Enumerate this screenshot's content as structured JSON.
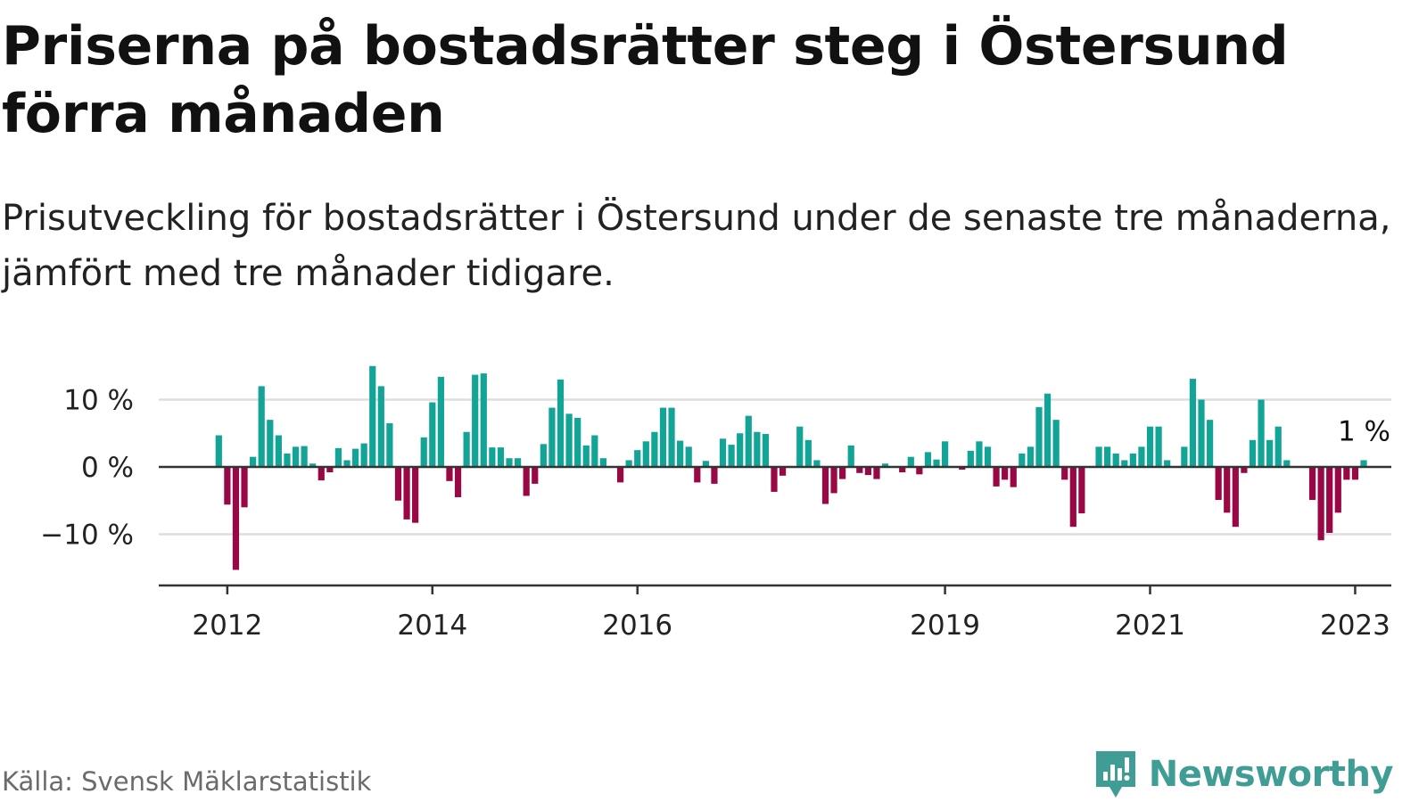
{
  "header": {
    "title": "Priserna på bostadsrätter steg i Östersund förra månaden",
    "subtitle": "Prisutveckling för bostadsrätter i Östersund under de senaste tre månaderna, jämfört med tre månader tidigare."
  },
  "footer": {
    "source": "Källa: Svensk Mäklarstatistik",
    "brand": "Newsworthy",
    "brand_icon": "newsworthy-logo-icon"
  },
  "colors": {
    "positive": "#11a497",
    "negative": "#990845",
    "grid": "#dddddd",
    "axis": "#333333"
  },
  "chart_data": {
    "type": "bar",
    "title": "",
    "xlabel": "",
    "ylabel": "",
    "ylim": [
      -17,
      15
    ],
    "y_ticks": [
      {
        "value": 10,
        "label": "10 %"
      },
      {
        "value": 0,
        "label": "0 %"
      },
      {
        "value": -10,
        "label": "−10 %"
      }
    ],
    "x_ticks": [
      {
        "year": 2012,
        "label": "2012"
      },
      {
        "year": 2014,
        "label": "2014"
      },
      {
        "year": 2016,
        "label": "2016"
      },
      {
        "year": 2019,
        "label": "2019"
      },
      {
        "year": 2021,
        "label": "2021"
      },
      {
        "year": 2023,
        "label": "2023"
      }
    ],
    "grid": true,
    "start": "2011-12",
    "frequency": "monthly",
    "end_label": "1 %",
    "values": [
      4.7,
      -5.6,
      -15.3,
      -6.0,
      1.5,
      12.0,
      7.0,
      4.7,
      2.0,
      3.0,
      3.1,
      0.5,
      -2.0,
      -0.8,
      2.8,
      1.0,
      2.7,
      3.5,
      15.0,
      12.0,
      6.5,
      -5.0,
      -7.8,
      -8.3,
      4.4,
      9.6,
      13.4,
      -2.1,
      -4.5,
      5.2,
      13.7,
      13.9,
      2.9,
      2.9,
      1.3,
      1.3,
      -4.3,
      -2.5,
      3.4,
      8.8,
      13.0,
      7.9,
      7.3,
      3.2,
      4.7,
      1.3,
      0.0,
      -2.3,
      1.0,
      2.5,
      3.8,
      5.2,
      8.8,
      8.8,
      3.9,
      3.0,
      -2.3,
      0.9,
      -2.5,
      4.2,
      3.3,
      5.0,
      7.6,
      5.2,
      4.9,
      -3.7,
      -1.3,
      0.0,
      6.0,
      4.0,
      1.0,
      -5.5,
      -3.9,
      -1.8,
      3.2,
      -0.9,
      -1.2,
      -1.8,
      0.5,
      0.0,
      -0.8,
      1.5,
      -1.1,
      2.2,
      1.1,
      3.8,
      0.0,
      -0.4,
      2.4,
      3.8,
      3.0,
      -2.9,
      -1.9,
      -3.0,
      2.0,
      3.0,
      8.9,
      10.9,
      7.0,
      -1.9,
      -8.9,
      -6.9,
      0.0,
      3.0,
      3.0,
      2.0,
      1.0,
      2.0,
      3.0,
      6.0,
      6.0,
      1.0,
      0.0,
      3.0,
      13.1,
      10.0,
      7.0,
      -4.9,
      -6.8,
      -8.9,
      -0.9,
      4.0,
      10.0,
      4.0,
      6.0,
      1.0,
      0.0,
      0.0,
      -4.9,
      -10.9,
      -9.8,
      -6.8,
      -1.9,
      -1.9,
      1.0
    ]
  }
}
